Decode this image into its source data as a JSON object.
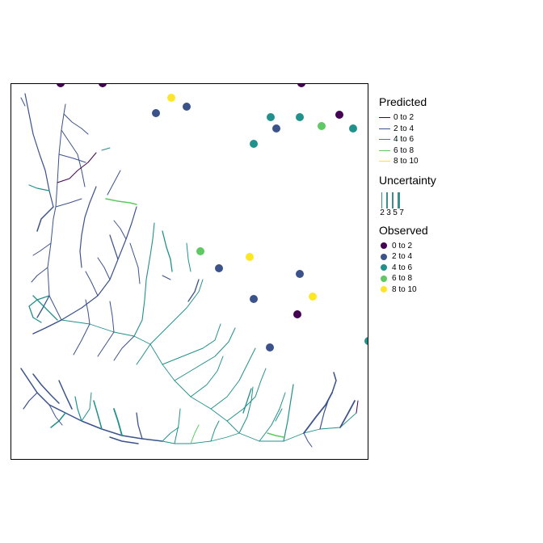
{
  "legend": {
    "predicted": {
      "title": "Predicted",
      "items": [
        {
          "label": "0 to 2",
          "color": "#440154"
        },
        {
          "label": "2 to 4",
          "color": "#3b528b"
        },
        {
          "label": "4 to 6",
          "color": "#21918c"
        },
        {
          "label": "6 to 8",
          "color": "#5ec962"
        },
        {
          "label": "8 to 10",
          "color": "#fde725"
        }
      ]
    },
    "uncertainty": {
      "title": "Uncertainty",
      "items": [
        {
          "label": "2",
          "width": 1
        },
        {
          "label": "3",
          "width": 1.5
        },
        {
          "label": "5",
          "width": 2
        },
        {
          "label": "7",
          "width": 3
        }
      ],
      "color": "#3c8f8a"
    },
    "observed": {
      "title": "Observed",
      "items": [
        {
          "label": "0 to 2",
          "color": "#440154"
        },
        {
          "label": "2 to 4",
          "color": "#3b528b"
        },
        {
          "label": "4 to 6",
          "color": "#21918c"
        },
        {
          "label": "6 to 8",
          "color": "#5ec962"
        },
        {
          "label": "8 to 10",
          "color": "#fde725"
        }
      ]
    }
  },
  "observed_points": [
    {
      "cls": 0
    },
    {
      "cls": 0
    },
    {
      "cls": 0
    },
    {
      "cls": 4
    },
    {
      "cls": 1
    },
    {
      "cls": 1
    },
    {
      "cls": 2
    },
    {
      "cls": 2
    },
    {
      "cls": 0
    },
    {
      "cls": 1
    },
    {
      "cls": 3
    },
    {
      "cls": 2
    },
    {
      "cls": 2
    },
    {
      "cls": 3
    },
    {
      "cls": 1
    },
    {
      "cls": 4
    },
    {
      "cls": 1
    },
    {
      "cls": 1
    },
    {
      "cls": 4
    },
    {
      "cls": 0
    },
    {
      "cls": 1
    },
    {
      "cls": 2
    }
  ]
}
